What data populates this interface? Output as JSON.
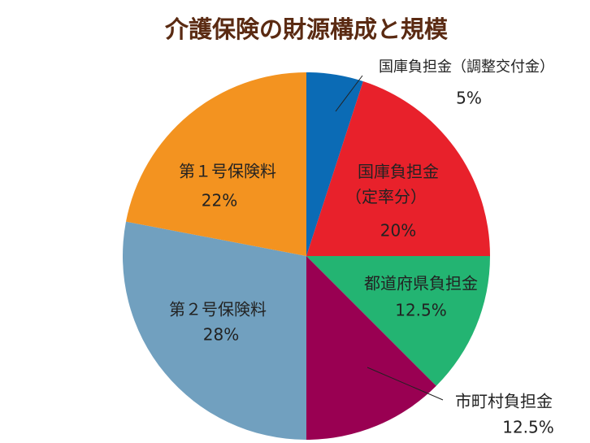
{
  "chart_data": {
    "type": "pie",
    "title": "介護保険の財源構成と規模",
    "categories": [
      "国庫負担金（調整交付金）",
      "国庫負担金（定率分）",
      "都道府県負担金",
      "市町村負担金",
      "第２号保険料",
      "第１号保険料"
    ],
    "values": [
      5,
      20,
      12.5,
      12.5,
      28,
      22
    ],
    "value_labels": [
      "5%",
      "20%",
      "12.5%",
      "12.5%",
      "28%",
      "22%"
    ],
    "colors": [
      "#0b6bb5",
      "#e8212b",
      "#23b472",
      "#990052",
      "#71a0bf",
      "#f39320"
    ]
  }
}
